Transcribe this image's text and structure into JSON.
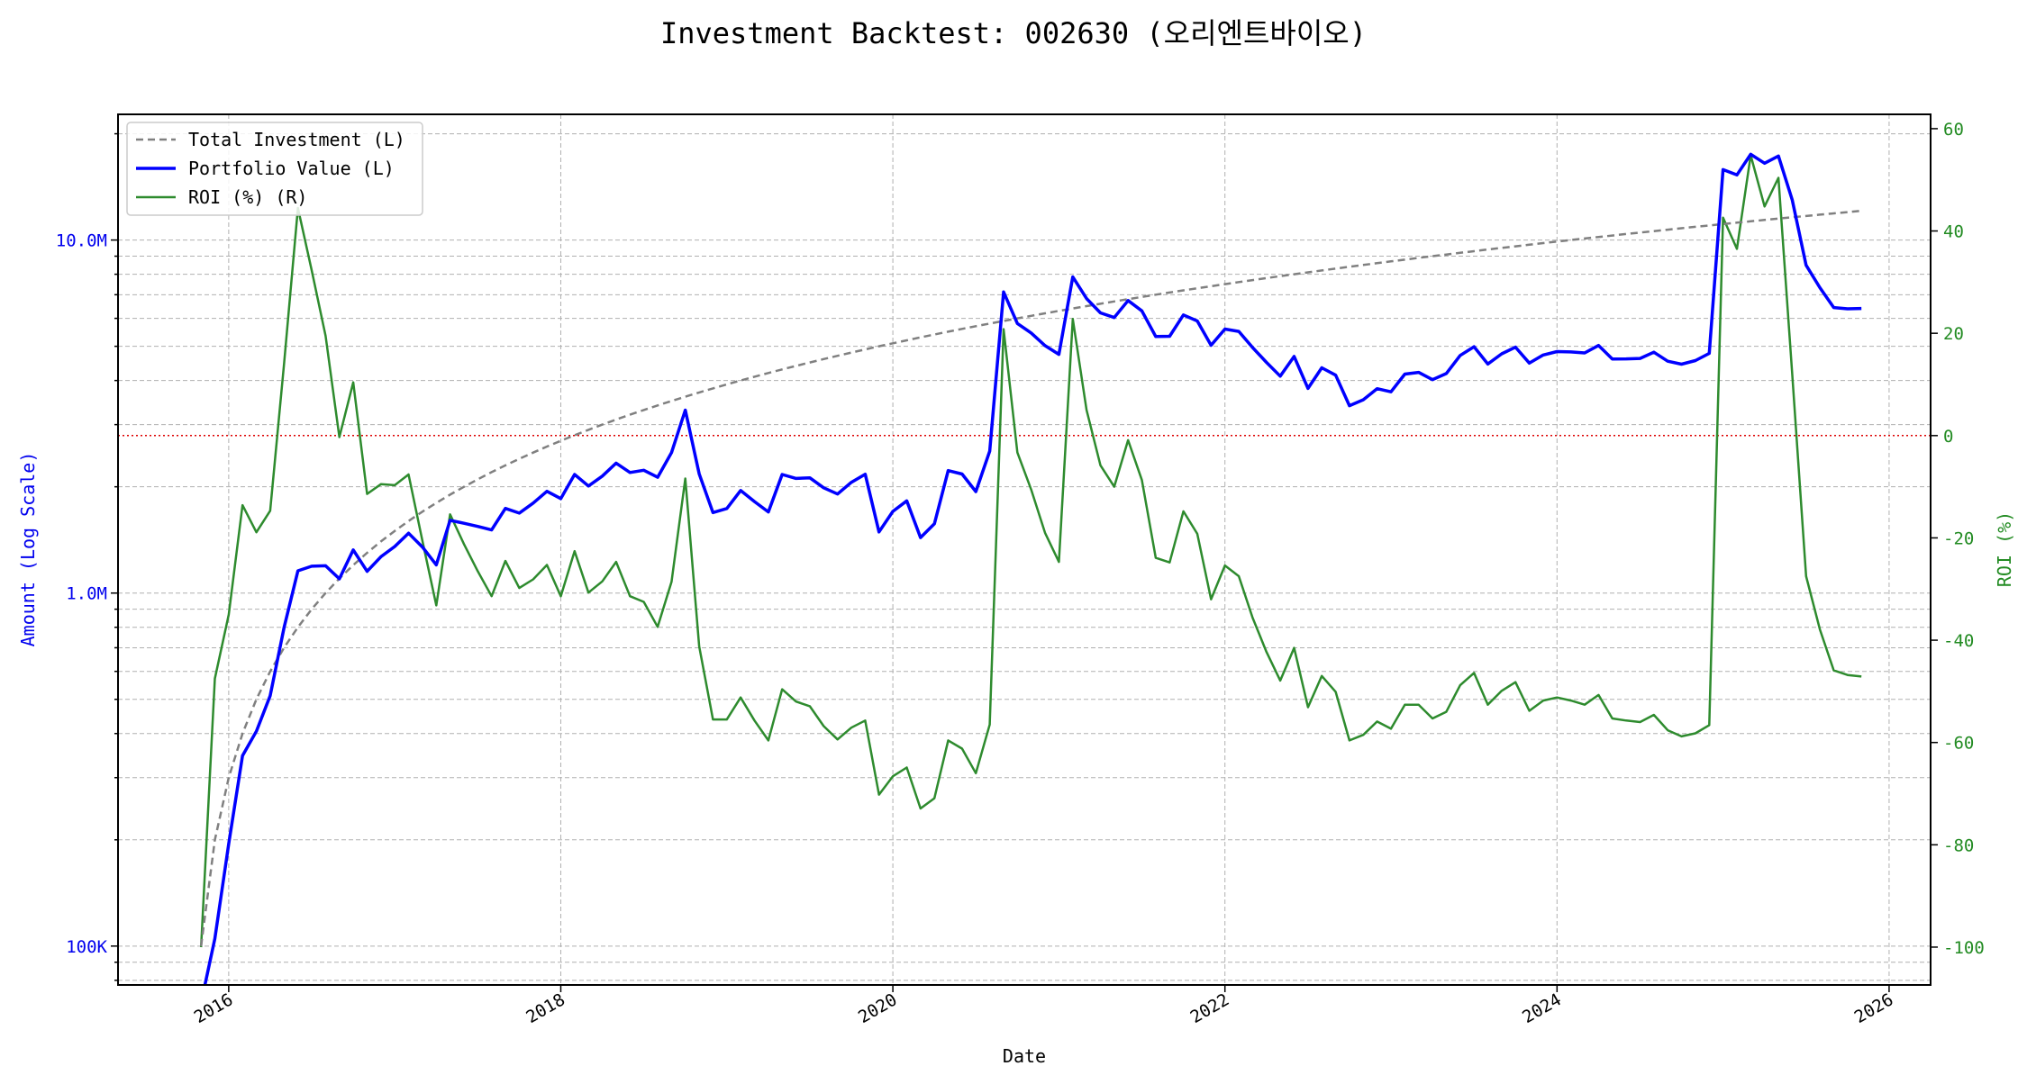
{
  "chart_data": {
    "type": "line",
    "title": "Investment Backtest: 002630 (오리엔트바이오)",
    "xlabel": "Date",
    "ylabel_left": "Amount (Log Scale)",
    "ylabel_right": "ROI (%)",
    "y_left_scale": "log",
    "y_left_range": [
      77600,
      22700000
    ],
    "y_right_range": [
      -107.4,
      62.8
    ],
    "x_range": [
      "2015-05",
      "2026-04"
    ],
    "x_ticks": [
      "2016",
      "2018",
      "2020",
      "2022",
      "2024",
      "2026"
    ],
    "y_left_ticks": [
      {
        "value": 100000,
        "label": "100K"
      },
      {
        "value": 1000000,
        "label": "1.0M"
      },
      {
        "value": 10000000,
        "label": "10.0M"
      }
    ],
    "y_right_ticks": [
      60,
      40,
      20,
      0,
      -20,
      -40,
      -60,
      -80,
      -100
    ],
    "grid": true,
    "legend_placement": "top-left",
    "reference_line": {
      "axis": "right",
      "value": 0,
      "color": "#dd0000",
      "style": "dotted"
    },
    "colors": {
      "left_axis": "#0000ee",
      "right_axis": "#228b22",
      "investment": "#808080",
      "portfolio": "#0000ff",
      "roi": "#2e8b2e"
    },
    "x": [
      "2015-11",
      "2015-12",
      "2016-01",
      "2016-02",
      "2016-03",
      "2016-04",
      "2016-05",
      "2016-06",
      "2016-07",
      "2016-08",
      "2016-09",
      "2016-10",
      "2016-11",
      "2016-12",
      "2017-01",
      "2017-02",
      "2017-03",
      "2017-04",
      "2017-05",
      "2017-06",
      "2017-07",
      "2017-08",
      "2017-09",
      "2017-10",
      "2017-11",
      "2017-12",
      "2018-01",
      "2018-02",
      "2018-03",
      "2018-04",
      "2018-05",
      "2018-06",
      "2018-07",
      "2018-08",
      "2018-09",
      "2018-10",
      "2018-11",
      "2018-12",
      "2019-01",
      "2019-02",
      "2019-03",
      "2019-04",
      "2019-05",
      "2019-06",
      "2019-07",
      "2019-08",
      "2019-09",
      "2019-10",
      "2019-11",
      "2019-12",
      "2020-01",
      "2020-02",
      "2020-03",
      "2020-04",
      "2020-05",
      "2020-06",
      "2020-07",
      "2020-08",
      "2020-09",
      "2020-10",
      "2020-11",
      "2020-12",
      "2021-01",
      "2021-02",
      "2021-03",
      "2021-04",
      "2021-05",
      "2021-06",
      "2021-07",
      "2021-08",
      "2021-09",
      "2021-10",
      "2021-11",
      "2021-12",
      "2022-01",
      "2022-02",
      "2022-03",
      "2022-04",
      "2022-05",
      "2022-06",
      "2022-07",
      "2022-08",
      "2022-09",
      "2022-10",
      "2022-11",
      "2022-12",
      "2023-01",
      "2023-02",
      "2023-03",
      "2023-04",
      "2023-05",
      "2023-06",
      "2023-07",
      "2023-08",
      "2023-09",
      "2023-10",
      "2023-11",
      "2023-12",
      "2024-01",
      "2024-02",
      "2024-03",
      "2024-04",
      "2024-05",
      "2024-06",
      "2024-07",
      "2024-08",
      "2024-09",
      "2024-10",
      "2024-11",
      "2024-12",
      "2025-01",
      "2025-02",
      "2025-03",
      "2025-04",
      "2025-05",
      "2025-06",
      "2025-07",
      "2025-08",
      "2025-09",
      "2025-10",
      "2025-11"
    ],
    "series": [
      {
        "name": "Total Investment (L)",
        "axis": "left",
        "style": "dashed",
        "values": [
          100000,
          200000,
          300000,
          400000,
          500000,
          600000,
          700000,
          800000,
          900000,
          1000000,
          1100000,
          1200000,
          1300000,
          1400000,
          1500000,
          1600000,
          1700000,
          1800000,
          1900000,
          2000000,
          2100000,
          2200000,
          2300000,
          2400000,
          2500000,
          2600000,
          2700000,
          2800000,
          2900000,
          3000000,
          3100000,
          3200000,
          3300000,
          3400000,
          3500000,
          3600000,
          3700000,
          3800000,
          3900000,
          4000000,
          4100000,
          4200000,
          4300000,
          4400000,
          4500000,
          4600000,
          4700000,
          4800000,
          4900000,
          5000000,
          5100000,
          5200000,
          5300000,
          5400000,
          5500000,
          5600000,
          5700000,
          5800000,
          5900000,
          6000000,
          6100000,
          6200000,
          6300000,
          6400000,
          6500000,
          6600000,
          6700000,
          6800000,
          6900000,
          7000000,
          7100000,
          7200000,
          7300000,
          7400000,
          7500000,
          7600000,
          7700000,
          7800000,
          7900000,
          8000000,
          8100000,
          8200000,
          8300000,
          8400000,
          8500000,
          8600000,
          8700000,
          8800000,
          8900000,
          9000000,
          9100000,
          9200000,
          9300000,
          9400000,
          9500000,
          9600000,
          9700000,
          9800000,
          9900000,
          10000000,
          10100000,
          10200000,
          10300000,
          10400000,
          10500000,
          10600000,
          10700000,
          10800000,
          10900000,
          11000000,
          11100000,
          11200000,
          11300000,
          11400000,
          11500000,
          11600000,
          11700000,
          11800000,
          11900000,
          12000000,
          12100000
        ]
      },
      {
        "name": "Portfolio Value (L)",
        "axis": "left",
        "style": "solid",
        "values": [
          0,
          105000,
          195000,
          346000,
          406000,
          512000,
          798000,
          1156000,
          1191000,
          1195000,
          1097000,
          1325000,
          1152000,
          1267000,
          1355000,
          1478000,
          1350000,
          1202000,
          1607000,
          1576000,
          1544000,
          1509000,
          1737000,
          1685000,
          1798000,
          1942000,
          1852000,
          2167000,
          2010000,
          2145000,
          2334000,
          2195000,
          2228000,
          2128000,
          2499000,
          3298000,
          2176000,
          1691000,
          1736000,
          1952000,
          1816000,
          1697000,
          2167000,
          2112000,
          2120000,
          1987000,
          1908000,
          2059000,
          2171000,
          1490000,
          1703000,
          1825000,
          1436000,
          1571000,
          2222000,
          2173000,
          1938000,
          2523000,
          7127000,
          5802000,
          5453000,
          5022000,
          4744000,
          7859000,
          6825000,
          6217000,
          6030000,
          6739000,
          6300000,
          5327000,
          5339000,
          6134000,
          5898000,
          5032000,
          5595000,
          5510000,
          4959000,
          4501000,
          4116000,
          4680000,
          3799000,
          4346000,
          4142000,
          3394000,
          3528000,
          3793000,
          3715000,
          4171000,
          4219000,
          4023000,
          4186000,
          4710000,
          4985000,
          4456000,
          4760000,
          4973000,
          4481000,
          4724000,
          4831000,
          4820000,
          4787000,
          5029000,
          4604000,
          4607000,
          4620000,
          4812000,
          4537000,
          4450000,
          4556000,
          4774000,
          15829000,
          15288000,
          17492000,
          16507000,
          17296000,
          12992000,
          8483000,
          7328000,
          6438000,
          6384000,
          6401000
        ]
      },
      {
        "name": "ROI (%) (R)",
        "axis": "right",
        "style": "solid",
        "values": [
          -100,
          -47.5,
          -35,
          -13.6,
          -18.9,
          -14.7,
          14,
          44.5,
          32.3,
          19.5,
          -0.3,
          10.4,
          -11.4,
          -9.5,
          -9.7,
          -7.6,
          -20.6,
          -33.2,
          -15.4,
          -21.2,
          -26.5,
          -31.4,
          -24.5,
          -29.8,
          -28.1,
          -25.3,
          -31.4,
          -22.6,
          -30.7,
          -28.5,
          -24.7,
          -31.4,
          -32.5,
          -37.4,
          -28.6,
          -8.4,
          -41.2,
          -55.5,
          -55.5,
          -51.2,
          -55.7,
          -59.6,
          -49.6,
          -52,
          -52.9,
          -56.8,
          -59.4,
          -57.1,
          -55.7,
          -70.2,
          -66.6,
          -64.9,
          -72.9,
          -70.9,
          -59.6,
          -61.2,
          -66,
          -56.5,
          20.8,
          -3.3,
          -10.6,
          -19,
          -24.7,
          22.8,
          5,
          -5.8,
          -10,
          -0.9,
          -8.7,
          -23.9,
          -24.8,
          -14.8,
          -19.2,
          -32,
          -25.4,
          -27.5,
          -35.6,
          -42.3,
          -47.9,
          -41.5,
          -53.1,
          -47,
          -50.1,
          -59.6,
          -58.5,
          -55.9,
          -57.3,
          -52.6,
          -52.6,
          -55.3,
          -54,
          -48.8,
          -46.4,
          -52.6,
          -49.9,
          -48.2,
          -53.8,
          -51.8,
          -51.2,
          -51.8,
          -52.6,
          -50.7,
          -55.3,
          -55.7,
          -56,
          -54.6,
          -57.6,
          -58.8,
          -58.2,
          -56.6,
          42.6,
          36.5,
          54.8,
          44.8,
          50.4,
          12,
          -27.5,
          -37.9,
          -45.9,
          -46.8,
          -47.1
        ]
      }
    ]
  }
}
